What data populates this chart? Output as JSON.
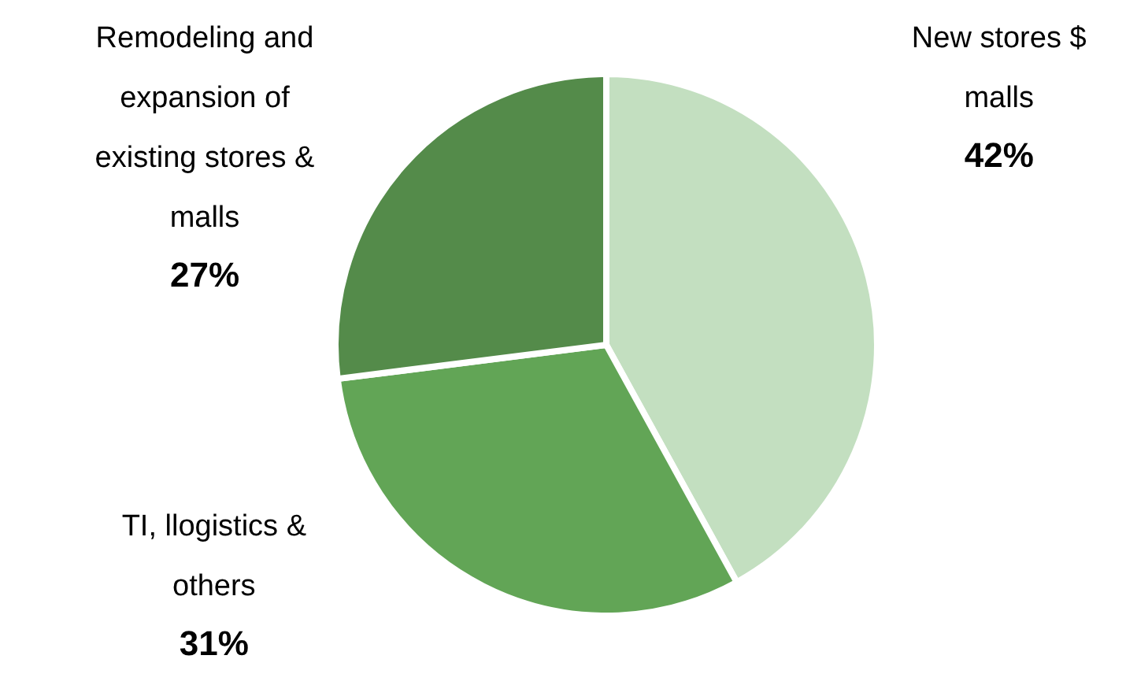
{
  "chart_data": {
    "type": "pie",
    "categories": [
      "New stores $ malls",
      "TI, llogistics & others",
      "Remodeling and expansion of existing stores & malls"
    ],
    "values": [
      42,
      31,
      27
    ],
    "colors": [
      "#c3dfc0",
      "#62a556",
      "#548b4a"
    ],
    "value_labels": [
      "42%",
      "31%",
      "27%"
    ],
    "legend": false
  }
}
